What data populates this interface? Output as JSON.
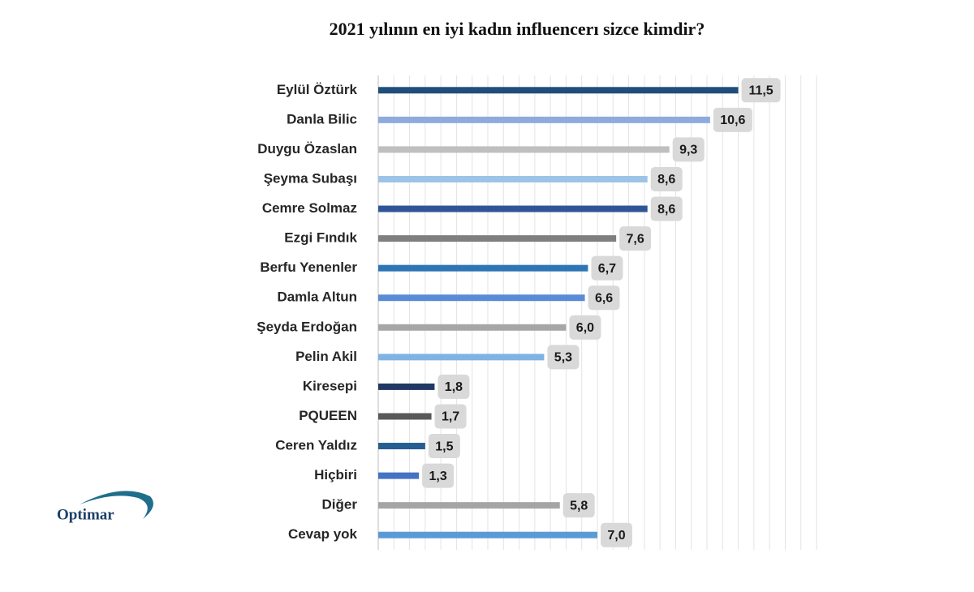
{
  "chart_data": {
    "type": "hbar",
    "title": "2021 yılının en iyi kadın influencerı sizce kimdir?",
    "logo": "Optimar",
    "categories": [
      "Eylül Öztürk",
      "Danla Bilic",
      "Duygu Özaslan",
      "Şeyma Subaşı",
      "Cemre Solmaz",
      "Ezgi Fındık",
      "Berfu Yenenler",
      "Damla Altun",
      "Şeyda Erdoğan",
      "Pelin Akil",
      "Kiresepi",
      "PQUEEN",
      "Ceren Yaldız",
      "Hiçbiri",
      "Diğer",
      "Cevap yok"
    ],
    "values": [
      11.5,
      10.6,
      9.3,
      8.6,
      8.6,
      7.6,
      6.7,
      6.6,
      6.0,
      5.3,
      1.8,
      1.7,
      1.5,
      1.3,
      5.8,
      7.0
    ],
    "value_labels": [
      "11,5",
      "10,6",
      "9,3",
      "8,6",
      "8,6",
      "7,6",
      "6,7",
      "6,6",
      "6,0",
      "5,3",
      "1,8",
      "1,7",
      "1,5",
      "1,3",
      "5,8",
      "7,0"
    ],
    "colors": [
      "#1f4e79",
      "#8faadc",
      "#bfbfbf",
      "#9dc3e6",
      "#2f5597",
      "#7f7f7f",
      "#2e75b6",
      "#5b8bd6",
      "#a6a6a6",
      "#7fb3e3",
      "#203864",
      "#595959",
      "#255e91",
      "#4472c4",
      "#a5a5a5",
      "#5b9bd5"
    ],
    "xlim": [
      0,
      14
    ],
    "xticks": [
      0,
      0.5,
      1,
      1.5,
      2,
      2.5,
      3,
      3.5,
      4,
      4.5,
      5,
      5.5,
      6,
      6.5,
      7,
      7.5,
      8,
      8.5,
      9,
      9.5,
      10,
      10.5,
      11,
      11.5,
      12,
      12.5,
      13,
      13.5,
      14
    ],
    "grid": true
  }
}
